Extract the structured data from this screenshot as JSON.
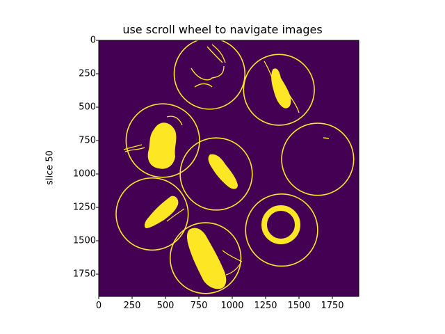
{
  "figure": {
    "title": "use scroll wheel to navigate images",
    "ylabel": "slice 50",
    "colors": {
      "background": "#440154",
      "foreground": "#fde725",
      "axis": "#000000"
    },
    "x_ticks": [
      "0",
      "250",
      "500",
      "750",
      "1000",
      "1250",
      "1500",
      "1750"
    ],
    "y_ticks": [
      "0",
      "250",
      "500",
      "750",
      "1000",
      "1250",
      "1500",
      "1750"
    ]
  },
  "chart_data": {
    "type": "heatmap",
    "title": "use scroll wheel to navigate images",
    "xlabel": "",
    "ylabel": "slice 50",
    "xlim": [
      0,
      1950
    ],
    "ylim": [
      1950,
      0
    ],
    "x_ticks": [
      0,
      250,
      500,
      750,
      1000,
      1250,
      1500,
      1750
    ],
    "y_ticks": [
      0,
      250,
      500,
      750,
      1000,
      1250,
      1500,
      1750
    ],
    "colormap": "viridis (binary mask: background #440154, foreground #fde725)",
    "wells": [
      {
        "cx": 830,
        "cy": 250,
        "r": 265,
        "content": "thin strands"
      },
      {
        "cx": 1350,
        "cy": 370,
        "r": 265,
        "content": "elongated object"
      },
      {
        "cx": 480,
        "cy": 750,
        "r": 275,
        "content": "large irregular object"
      },
      {
        "cx": 1640,
        "cy": 890,
        "r": 270,
        "content": "empty"
      },
      {
        "cx": 880,
        "cy": 1000,
        "r": 270,
        "content": "elongated object"
      },
      {
        "cx": 400,
        "cy": 1300,
        "r": 270,
        "content": "elongated object"
      },
      {
        "cx": 1370,
        "cy": 1420,
        "r": 270,
        "content": "ring"
      },
      {
        "cx": 800,
        "cy": 1630,
        "r": 265,
        "content": "large elongated object"
      }
    ]
  }
}
